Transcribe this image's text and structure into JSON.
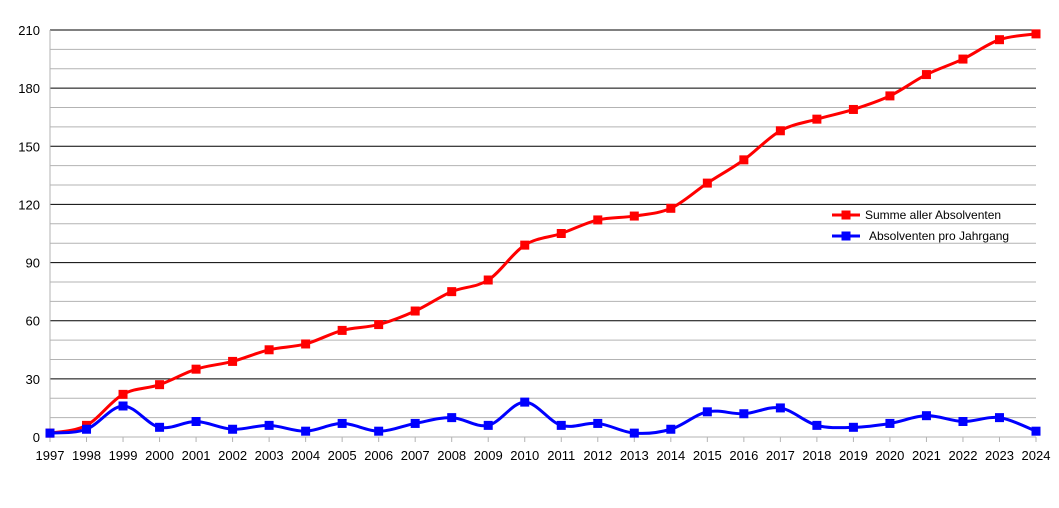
{
  "chart_data": {
    "type": "line",
    "title": "",
    "xlabel": "",
    "ylabel": "",
    "x": [
      1997,
      1998,
      1999,
      2000,
      2001,
      2002,
      2003,
      2004,
      2005,
      2006,
      2007,
      2008,
      2009,
      2010,
      2011,
      2012,
      2013,
      2014,
      2015,
      2016,
      2017,
      2018,
      2019,
      2020,
      2021,
      2022,
      2023,
      2024
    ],
    "ylim": [
      0,
      210
    ],
    "yticks": [
      0,
      30,
      60,
      90,
      120,
      150,
      180,
      210
    ],
    "grid": true,
    "legend_position": "right",
    "series": [
      {
        "name": "Summe aller Absolventen",
        "color": "#ff0000",
        "marker": "square",
        "smooth": true,
        "values": [
          2,
          6,
          22,
          27,
          35,
          39,
          45,
          48,
          55,
          58,
          65,
          75,
          81,
          99,
          105,
          112,
          114,
          118,
          131,
          143,
          158,
          164,
          169,
          176,
          187,
          195,
          205,
          208
        ]
      },
      {
        "name": "Absolventen pro Jahrgang",
        "color": "#0000ff",
        "marker": "square",
        "smooth": true,
        "values": [
          2,
          4,
          16,
          5,
          8,
          4,
          6,
          3,
          7,
          3,
          7,
          10,
          6,
          18,
          6,
          7,
          2,
          4,
          13,
          12,
          15,
          6,
          5,
          7,
          11,
          8,
          10,
          3
        ]
      }
    ]
  }
}
